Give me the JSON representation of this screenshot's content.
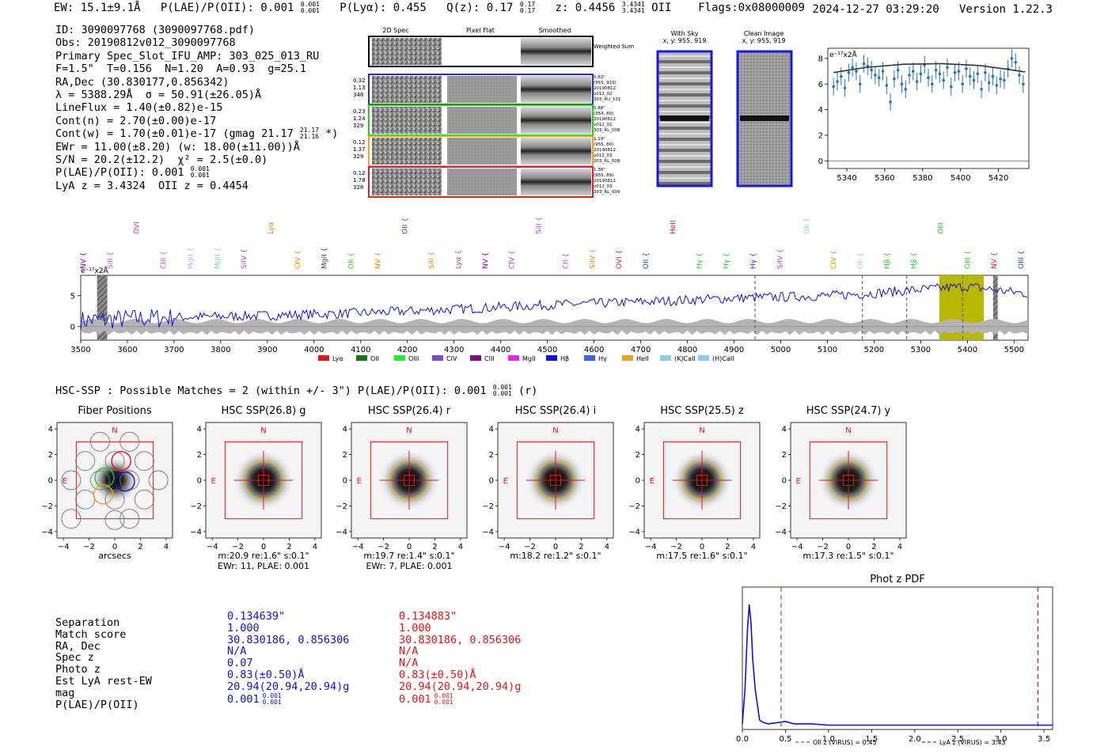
{
  "header": {
    "ew": "EW: 15.1±9.1Å",
    "plae": "P(LAE)/P(OII): 0.001",
    "plae_sup": "0.001",
    "plae_sub": "0.001",
    "plya": "P(Lyα): 0.455",
    "qz": "Q(z): 0.17",
    "qz_sup": "0.17",
    "qz_sub": "0.17",
    "z": "z: 0.4456",
    "z_sup": "3.4341",
    "z_sub": "3.4341",
    "z_line": "OII",
    "flags": "Flags:0x08000009",
    "date": "2024-12-27 03:29:20",
    "version": "Version 1.22.3"
  },
  "info": {
    "id": "ID: 3090097768 (3090097768.pdf)",
    "obs": "Obs: 20190812v012_3090097768",
    "primary": "Primary Spec_Slot_IFU_AMP: 303_025_013_RU",
    "fwhm": "F=1.5\"  T=0.156  N=1.20  A=0.93  g=25.1",
    "radec": "RA,Dec (30.830177,0.856342)",
    "lambda": "λ = 5388.29Å  σ = 50.91(±26.05)Å",
    "lineflux": "LineFlux = 1.40(±0.82)e-15",
    "contn": "Cont(n) = 2.70(±0.00)e-17",
    "contw": "Cont(w) = 1.70(±0.01)e-17 (gmag 21.17",
    "contw_sup": "21.17",
    "contw_sub": "21.16",
    "contw_end": "*)",
    "ewr": "EWr = 11.00(±8.20) (w: 18.00(±11.00))Å",
    "sn": "S/N = 20.2(±12.2)  χ² = 2.5(±0.0)",
    "plae": "P(LAE)/P(OII): 0.001",
    "plae_sup": "0.001",
    "plae_sub": "0.001",
    "lya": "LyA z = 3.4324  OII z = 0.4454"
  },
  "spec2d": {
    "headers": [
      "2D Spec",
      "Pixel Flat",
      "Smoothed"
    ],
    "weighted_sum": "Weighted Sum",
    "rows": [
      {
        "left": [
          "0.32",
          "1.13",
          "348"
        ],
        "right": [
          "0.63\"",
          "(955, 919)",
          "20190812",
          "v012_02",
          "303_RU_101"
        ],
        "color": "#2233cc"
      },
      {
        "left": [
          "0.23",
          "1.24",
          "329"
        ],
        "right": [
          "0.88\"",
          "(954, 80)",
          "20190812",
          "v012_01",
          "303_RL_008"
        ],
        "color": "#22cc22"
      },
      {
        "left": [
          "0.12",
          "1.37",
          "329"
        ],
        "right": [
          "1.19\"",
          "(955, 80)",
          "20190812",
          "v012_03",
          "303_RL_008"
        ],
        "color": "#f0a020"
      },
      {
        "left": [
          "0.12",
          "1.78",
          "328"
        ],
        "right": [
          "1.38\"",
          "(955, 89)",
          "20190812",
          "v012_03",
          "303_RL_009"
        ],
        "color": "#dd2222"
      }
    ]
  },
  "sky_panels": [
    {
      "title": "With Sky",
      "sub": "x, y: 955, 919"
    },
    {
      "title": "Clean Image",
      "sub": "x, y: 955, 919"
    }
  ],
  "zoom_plot": {
    "ylabel": "e⁻¹⁷x2Å",
    "xticks": [
      "5340",
      "5360",
      "5380",
      "5400",
      "5420"
    ],
    "yticks": [
      "0",
      "2",
      "4",
      "6",
      "8"
    ]
  },
  "full_spectrum": {
    "ylabel": "e⁻¹⁷x2Å",
    "xticks": [
      "3500",
      "3600",
      "3700",
      "3800",
      "3900",
      "4000",
      "4100",
      "4200",
      "4300",
      "4400",
      "4500",
      "4600",
      "4700",
      "4800",
      "4900",
      "5000",
      "5100",
      "5200",
      "5300",
      "5400",
      "5500"
    ],
    "yticks": [
      "0",
      "5"
    ],
    "line_labels": [
      {
        "label": "NV",
        "color": "#8800aa"
      },
      {
        "label": "SiII",
        "color": "#cc44cc"
      },
      {
        "label": "OVI",
        "color": "#aa44cc"
      },
      {
        "label": "CIII",
        "color": "#cc44cc"
      },
      {
        "label": "MgII",
        "color": "#88ccee"
      },
      {
        "label": "MgII",
        "color": "#88ccee"
      },
      {
        "label": "SiIV",
        "color": "#aa44cc"
      },
      {
        "label": "Lyα",
        "color": "#ee8800"
      },
      {
        "label": "CIV",
        "color": "#ee8800"
      },
      {
        "label": "MgII",
        "color": "#226622"
      },
      {
        "label": "OII",
        "color": "#22cc22"
      },
      {
        "label": "NV",
        "color": "#ee8800"
      },
      {
        "label": "OII",
        "color": "#2244cc"
      },
      {
        "label": "SiII",
        "color": "#ee8800"
      },
      {
        "label": "Lyα",
        "color": "#aa44cc"
      },
      {
        "label": "NV",
        "color": "#8800aa"
      },
      {
        "label": "CIV",
        "color": "#aa44cc"
      },
      {
        "label": "SiII",
        "color": "#aa44cc"
      },
      {
        "label": "CII",
        "color": "#cc44cc"
      },
      {
        "label": "SiIV",
        "color": "#ee8800"
      },
      {
        "label": "OVI",
        "color": "#dd2222"
      },
      {
        "label": "OII",
        "color": "#2244cc"
      },
      {
        "label": "HeII",
        "color": "#dd2222"
      },
      {
        "label": "Hγ",
        "color": "#22cc22"
      },
      {
        "label": "Hγ",
        "color": "#22cc22"
      },
      {
        "label": "Hγ",
        "color": "#2244cc"
      },
      {
        "label": "SiIV",
        "color": "#aa44cc"
      },
      {
        "label": "OII",
        "color": "#88ccee"
      },
      {
        "label": "CIV",
        "color": "#ee8800"
      },
      {
        "label": "OII",
        "color": "#88ccee"
      },
      {
        "label": "Hβ",
        "color": "#22cc22"
      },
      {
        "label": "Hβ",
        "color": "#22cc22"
      },
      {
        "label": "OIII",
        "color": "#22cc22"
      },
      {
        "label": "OIII",
        "color": "#22cc22"
      },
      {
        "label": "NV",
        "color": "#dd2222"
      },
      {
        "label": "OIII",
        "color": "#2244cc"
      }
    ],
    "legend": [
      {
        "label": "Lyα",
        "color": "#ee1111"
      },
      {
        "label": "OII",
        "color": "#117711"
      },
      {
        "label": "OIII",
        "color": "#22ee22"
      },
      {
        "label": "CIV",
        "color": "#8844cc"
      },
      {
        "label": "CIII",
        "color": "#880088"
      },
      {
        "label": "MgII",
        "color": "#ee22ee"
      },
      {
        "label": "Hβ",
        "color": "#1111dd"
      },
      {
        "label": "Hγ",
        "color": "#3366ee"
      },
      {
        "label": "HeII",
        "color": "#f0a020"
      },
      {
        "label": "(K)CaII",
        "color": "#88ccee"
      },
      {
        "label": "(H)CaII",
        "color": "#88ccee"
      }
    ]
  },
  "hsc": {
    "title": "HSC-SSP : Possible Matches = 2 (within +/- 3\")  P(LAE)/P(OII): 0.001",
    "title_sup": "0.001",
    "title_sub": "0.001",
    "title_end": "(r)",
    "cutouts": [
      {
        "title": "Fiber Positions",
        "caption1": "arcsecs",
        "caption2": ""
      },
      {
        "title": "HSC SSP(26.8) g",
        "caption1": "m:20.9  re:1.6\"  s:0.1\"",
        "caption2": "EWr: 11, PLAE: 0.001"
      },
      {
        "title": "HSC SSP(26.4) r",
        "caption1": "m:19.7  re:1.4\"  s:0.1\"",
        "caption2": "EWr: 7, PLAE: 0.001"
      },
      {
        "title": "HSC SSP(26.4) i",
        "caption1": "m:18.2  re:1.2\"  s:0.1\"",
        "caption2": ""
      },
      {
        "title": "HSC SSP(25.5) z",
        "caption1": "m:17.5  re:1.6\"  s:0.1\"",
        "caption2": ""
      },
      {
        "title": "HSC SSP(24.7) y",
        "caption1": "m:17.3  re:1.5\"  s:0.1\"",
        "caption2": ""
      }
    ],
    "ticks": [
      "4",
      "2",
      "0",
      "−2",
      "−4"
    ],
    "xticks": [
      "−4",
      "−2",
      "0",
      "2",
      "4"
    ],
    "north": "N",
    "east": "E"
  },
  "match_table": {
    "labels": [
      "Separation",
      "Match score",
      "RA, Dec",
      "Spec z",
      "Photo z",
      "Est LyA rest-EW",
      "mag",
      "P(LAE)/P(OII)"
    ],
    "match1": [
      "0.134639\"",
      "1.000",
      "30.830186, 0.856306",
      "N/A",
      "0.07",
      "0.83(±0.50)Å",
      "20.94(20.94,20.94)g",
      "0.001"
    ],
    "match2": [
      "0.134883\"",
      "1.000",
      "30.830186, 0.856306",
      "N/A",
      "N/A",
      "0.83(±0.50)Å",
      "20.94(20.94,20.94)g",
      "0.001"
    ],
    "plae_sup": "0.001",
    "plae_sub": "0.001",
    "color1": "#1111dd",
    "color2": "#ee1111"
  },
  "chart_data": [
    {
      "type": "scatter",
      "title": "",
      "xlabel": "",
      "ylabel": "e⁻¹⁷x2Å",
      "xlim": [
        5330,
        5436
      ],
      "ylim": [
        -0.6,
        8.8
      ],
      "x": [
        5333,
        5335,
        5337,
        5339,
        5341,
        5343,
        5345,
        5347,
        5349,
        5351,
        5353,
        5355,
        5357,
        5359,
        5361,
        5363,
        5365,
        5367,
        5369,
        5371,
        5373,
        5375,
        5377,
        5379,
        5381,
        5383,
        5385,
        5387,
        5389,
        5391,
        5393,
        5395,
        5397,
        5399,
        5401,
        5403,
        5405,
        5407,
        5409,
        5411,
        5413,
        5415,
        5417,
        5419,
        5421,
        5423,
        5425,
        5427,
        5429,
        5431,
        5433
      ],
      "values": [
        5.8,
        6.2,
        6.6,
        5.7,
        6.9,
        7.3,
        7.0,
        6.0,
        7.6,
        7.4,
        7.1,
        6.7,
        6.5,
        7.0,
        5.9,
        4.6,
        6.4,
        7.1,
        6.0,
        5.6,
        6.7,
        7.0,
        6.2,
        6.8,
        7.5,
        6.5,
        6.0,
        7.1,
        6.8,
        6.3,
        7.3,
        5.8,
        6.9,
        7.0,
        6.0,
        7.2,
        6.6,
        6.3,
        6.8,
        5.6,
        6.9,
        6.1,
        6.6,
        5.9,
        6.4,
        6.3,
        7.2,
        8.0,
        7.7,
        6.7,
        6.0
      ],
      "fit": {
        "x": [
          5333,
          5350,
          5370,
          5390,
          5410,
          5425,
          5434
        ],
        "y": [
          6.9,
          7.3,
          7.55,
          7.6,
          7.45,
          7.15,
          6.95
        ]
      }
    },
    {
      "type": "line",
      "title": "",
      "ylabel": "e⁻¹⁷x2Å",
      "xlim": [
        3500,
        5530
      ],
      "ylim": [
        -2.2,
        8.3
      ],
      "shaded_regions": [
        {
          "from": 5340,
          "to": 5435,
          "color": "#b8b800"
        }
      ],
      "dashed_lines": [
        4945,
        5175,
        5270,
        5390
      ],
      "hatched_regions": [
        {
          "from": 3535,
          "to": 3557
        },
        {
          "from": 5455,
          "to": 5465
        }
      ],
      "series": [
        {
          "name": "spectrum",
          "trend": [
            [
              3500,
              1.0
            ],
            [
              3700,
              1.5
            ],
            [
              3900,
              1.8
            ],
            [
              4100,
              2.2
            ],
            [
              4300,
              2.8
            ],
            [
              4500,
              3.5
            ],
            [
              4700,
              4.0
            ],
            [
              4900,
              4.6
            ],
            [
              5100,
              5.0
            ],
            [
              5200,
              5.4
            ],
            [
              5300,
              6.0
            ],
            [
              5400,
              6.5
            ],
            [
              5530,
              5.3
            ]
          ]
        }
      ]
    },
    {
      "type": "line",
      "title": "Phot z PDF",
      "xlim": [
        0,
        3.6
      ],
      "xticks": [
        "0.0",
        "0.5",
        "1.0",
        "1.5",
        "2.0",
        "2.5",
        "3.0",
        "3.5"
      ],
      "series": [
        {
          "name": "pdf",
          "x": [
            0.0,
            0.03,
            0.06,
            0.08,
            0.1,
            0.12,
            0.15,
            0.2,
            0.25,
            0.3,
            0.4,
            0.5,
            0.6,
            0.8,
            1.0,
            1.5,
            2.0,
            3.0,
            3.6
          ],
          "values": [
            0.02,
            0.3,
            0.8,
            1.0,
            0.85,
            0.55,
            0.3,
            0.05,
            0.03,
            0.02,
            0.03,
            0.04,
            0.02,
            0.02,
            0.01,
            0.01,
            0.01,
            0.01,
            0.01
          ]
        }
      ],
      "vlines": [
        {
          "x": 0.45,
          "label": "OII z (VIRUS) = 0.45",
          "color": "#22aa22"
        },
        {
          "x": 3.43,
          "label": "LyA z (VIRUS) = 3.43",
          "color": "#ee1111"
        }
      ]
    }
  ]
}
